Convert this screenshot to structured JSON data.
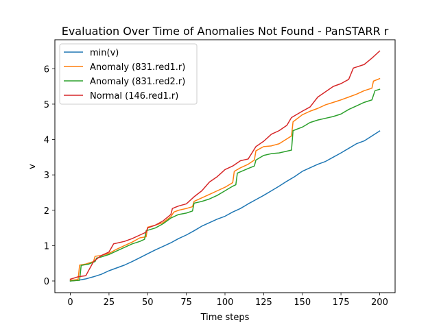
{
  "chart_data": {
    "type": "line",
    "title": "Evaluation Over Time of Anomalies Not Found - PanSTARR r",
    "xlabel": "Time steps",
    "ylabel": "v",
    "xlim": [
      -10,
      210
    ],
    "ylim": [
      -0.33,
      6.82
    ],
    "xticks": [
      0,
      25,
      50,
      75,
      100,
      125,
      150,
      175,
      200
    ],
    "yticks": [
      0,
      1,
      2,
      3,
      4,
      5,
      6
    ],
    "grid": false,
    "legend_position": "top-left",
    "series": [
      {
        "name": "min(v)",
        "color": "#1f77b4",
        "points": [
          [
            0,
            0.0
          ],
          [
            5,
            0.02
          ],
          [
            10,
            0.06
          ],
          [
            15,
            0.12
          ],
          [
            20,
            0.19
          ],
          [
            25,
            0.29
          ],
          [
            30,
            0.37
          ],
          [
            35,
            0.45
          ],
          [
            40,
            0.55
          ],
          [
            45,
            0.66
          ],
          [
            50,
            0.77
          ],
          [
            55,
            0.88
          ],
          [
            60,
            0.98
          ],
          [
            65,
            1.08
          ],
          [
            70,
            1.2
          ],
          [
            75,
            1.3
          ],
          [
            80,
            1.42
          ],
          [
            85,
            1.55
          ],
          [
            90,
            1.65
          ],
          [
            95,
            1.75
          ],
          [
            100,
            1.83
          ],
          [
            105,
            1.95
          ],
          [
            110,
            2.05
          ],
          [
            115,
            2.18
          ],
          [
            120,
            2.3
          ],
          [
            125,
            2.42
          ],
          [
            130,
            2.55
          ],
          [
            135,
            2.68
          ],
          [
            140,
            2.82
          ],
          [
            145,
            2.95
          ],
          [
            150,
            3.1
          ],
          [
            155,
            3.2
          ],
          [
            160,
            3.3
          ],
          [
            165,
            3.38
          ],
          [
            170,
            3.5
          ],
          [
            175,
            3.62
          ],
          [
            180,
            3.75
          ],
          [
            185,
            3.88
          ],
          [
            190,
            3.96
          ],
          [
            195,
            4.1
          ],
          [
            200,
            4.24
          ]
        ]
      },
      {
        "name": "Anomaly (831.red1.r)",
        "color": "#ff7f0e",
        "points": [
          [
            0,
            0.02
          ],
          [
            5,
            0.04
          ],
          [
            6,
            0.45
          ],
          [
            10,
            0.48
          ],
          [
            15,
            0.55
          ],
          [
            16,
            0.7
          ],
          [
            20,
            0.72
          ],
          [
            25,
            0.78
          ],
          [
            30,
            0.9
          ],
          [
            35,
            1.0
          ],
          [
            40,
            1.1
          ],
          [
            45,
            1.22
          ],
          [
            49,
            1.25
          ],
          [
            50,
            1.52
          ],
          [
            55,
            1.58
          ],
          [
            60,
            1.65
          ],
          [
            65,
            1.82
          ],
          [
            67,
            1.95
          ],
          [
            70,
            2.0
          ],
          [
            75,
            2.05
          ],
          [
            79,
            2.1
          ],
          [
            80,
            2.25
          ],
          [
            85,
            2.35
          ],
          [
            90,
            2.45
          ],
          [
            95,
            2.55
          ],
          [
            100,
            2.65
          ],
          [
            105,
            2.78
          ],
          [
            106,
            3.1
          ],
          [
            110,
            3.2
          ],
          [
            115,
            3.3
          ],
          [
            119,
            3.42
          ],
          [
            120,
            3.68
          ],
          [
            125,
            3.8
          ],
          [
            130,
            3.82
          ],
          [
            135,
            3.88
          ],
          [
            143,
            4.1
          ],
          [
            144,
            4.5
          ],
          [
            150,
            4.7
          ],
          [
            155,
            4.8
          ],
          [
            160,
            4.88
          ],
          [
            165,
            4.98
          ],
          [
            170,
            5.05
          ],
          [
            175,
            5.12
          ],
          [
            180,
            5.2
          ],
          [
            185,
            5.28
          ],
          [
            190,
            5.38
          ],
          [
            195,
            5.45
          ],
          [
            196,
            5.65
          ],
          [
            200,
            5.72
          ]
        ]
      },
      {
        "name": "Anomaly (831.red2.r)",
        "color": "#2ca02c",
        "points": [
          [
            0,
            0.0
          ],
          [
            6,
            0.02
          ],
          [
            7,
            0.44
          ],
          [
            12,
            0.48
          ],
          [
            16,
            0.55
          ],
          [
            17,
            0.65
          ],
          [
            20,
            0.68
          ],
          [
            25,
            0.75
          ],
          [
            30,
            0.85
          ],
          [
            35,
            0.95
          ],
          [
            40,
            1.05
          ],
          [
            45,
            1.12
          ],
          [
            48,
            1.18
          ],
          [
            49,
            1.42
          ],
          [
            55,
            1.5
          ],
          [
            60,
            1.62
          ],
          [
            65,
            1.78
          ],
          [
            70,
            1.88
          ],
          [
            75,
            1.92
          ],
          [
            79,
            1.98
          ],
          [
            80,
            2.2
          ],
          [
            85,
            2.25
          ],
          [
            90,
            2.32
          ],
          [
            95,
            2.42
          ],
          [
            100,
            2.55
          ],
          [
            105,
            2.68
          ],
          [
            107,
            2.72
          ],
          [
            108,
            3.05
          ],
          [
            115,
            3.18
          ],
          [
            119,
            3.25
          ],
          [
            120,
            3.42
          ],
          [
            125,
            3.55
          ],
          [
            130,
            3.6
          ],
          [
            135,
            3.62
          ],
          [
            143,
            3.7
          ],
          [
            144,
            4.25
          ],
          [
            150,
            4.35
          ],
          [
            155,
            4.48
          ],
          [
            160,
            4.55
          ],
          [
            165,
            4.6
          ],
          [
            170,
            4.65
          ],
          [
            175,
            4.72
          ],
          [
            180,
            4.85
          ],
          [
            185,
            4.95
          ],
          [
            190,
            5.05
          ],
          [
            195,
            5.12
          ],
          [
            197,
            5.38
          ],
          [
            200,
            5.42
          ]
        ]
      },
      {
        "name": "Normal (146.red1.r)",
        "color": "#d62728",
        "points": [
          [
            0,
            0.05
          ],
          [
            5,
            0.12
          ],
          [
            10,
            0.15
          ],
          [
            15,
            0.55
          ],
          [
            20,
            0.72
          ],
          [
            25,
            0.82
          ],
          [
            28,
            1.05
          ],
          [
            35,
            1.12
          ],
          [
            40,
            1.2
          ],
          [
            45,
            1.3
          ],
          [
            49,
            1.38
          ],
          [
            50,
            1.5
          ],
          [
            55,
            1.58
          ],
          [
            60,
            1.7
          ],
          [
            65,
            1.88
          ],
          [
            66,
            2.05
          ],
          [
            70,
            2.12
          ],
          [
            75,
            2.18
          ],
          [
            80,
            2.38
          ],
          [
            85,
            2.55
          ],
          [
            90,
            2.8
          ],
          [
            95,
            2.95
          ],
          [
            100,
            3.15
          ],
          [
            105,
            3.25
          ],
          [
            110,
            3.4
          ],
          [
            115,
            3.45
          ],
          [
            120,
            3.8
          ],
          [
            125,
            3.95
          ],
          [
            130,
            4.15
          ],
          [
            135,
            4.25
          ],
          [
            140,
            4.4
          ],
          [
            143,
            4.62
          ],
          [
            150,
            4.8
          ],
          [
            155,
            4.92
          ],
          [
            160,
            5.2
          ],
          [
            165,
            5.35
          ],
          [
            170,
            5.5
          ],
          [
            175,
            5.58
          ],
          [
            180,
            5.7
          ],
          [
            183,
            6.02
          ],
          [
            190,
            6.12
          ],
          [
            195,
            6.3
          ],
          [
            200,
            6.5
          ]
        ]
      }
    ]
  }
}
